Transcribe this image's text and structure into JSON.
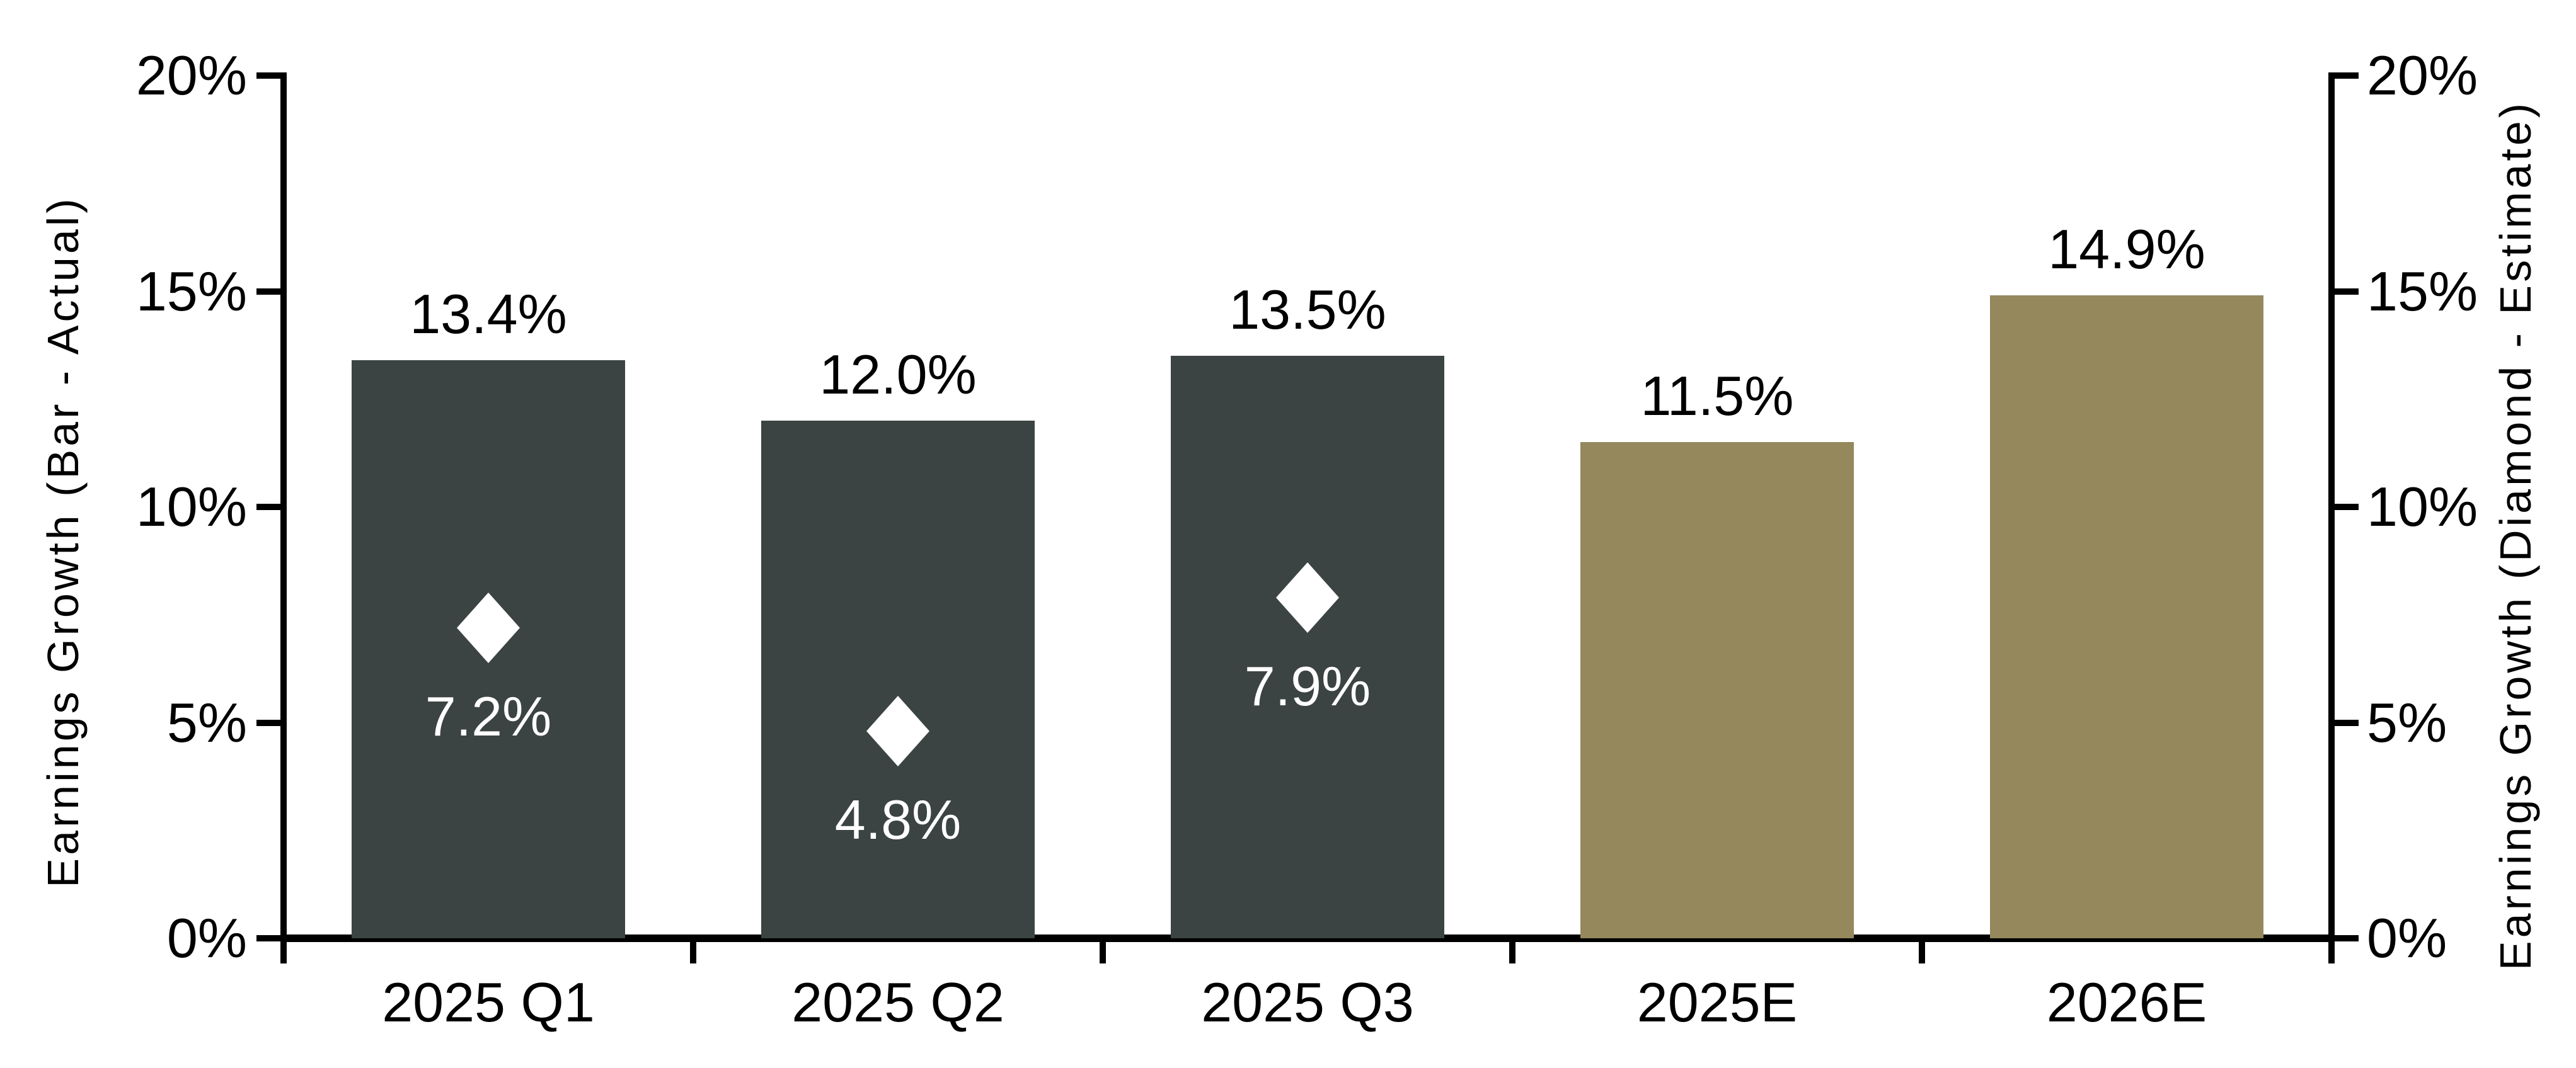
{
  "chart_data": {
    "type": "bar",
    "title": "",
    "categories": [
      "2025 Q1",
      "2025 Q2",
      "2025 Q3",
      "2025E",
      "2026E"
    ],
    "series": [
      {
        "name": "Earnings Growth - Actual (bars)",
        "type": "bar",
        "values": [
          13.4,
          12.0,
          13.5,
          11.5,
          14.9
        ],
        "labels": [
          "13.4%",
          "12.0%",
          "13.5%",
          "11.5%",
          "14.9%"
        ],
        "bar_styles": [
          "actual",
          "actual",
          "actual",
          "estimate",
          "estimate"
        ]
      },
      {
        "name": "Earnings Growth - Estimate (diamond markers)",
        "type": "scatter",
        "marker": "diamond",
        "values": [
          7.2,
          4.8,
          7.9,
          null,
          null
        ],
        "labels": [
          "7.2%",
          "4.8%",
          "7.9%",
          null,
          null
        ]
      }
    ],
    "left_axis": {
      "title": "Earnings Growth (Bar - Actual)",
      "min": 0,
      "max": 20,
      "tick_values": [
        0,
        5,
        10,
        15,
        20
      ],
      "tick_labels": [
        "0%",
        "5%",
        "10%",
        "15%",
        "20%"
      ]
    },
    "right_axis": {
      "title": "Earnings Growth (Diamond - Estimate)",
      "min": 0,
      "max": 20,
      "tick_values": [
        0,
        5,
        10,
        15,
        20
      ],
      "tick_labels": [
        "0%",
        "5%",
        "10%",
        "15%",
        "20%"
      ]
    },
    "grid": "off",
    "legend": "none",
    "colors": {
      "bar_actual": "#3b4442",
      "bar_estimate": "#94885c",
      "diamond": "#ffffff",
      "axis": "#000000",
      "background": "#ffffff"
    }
  }
}
